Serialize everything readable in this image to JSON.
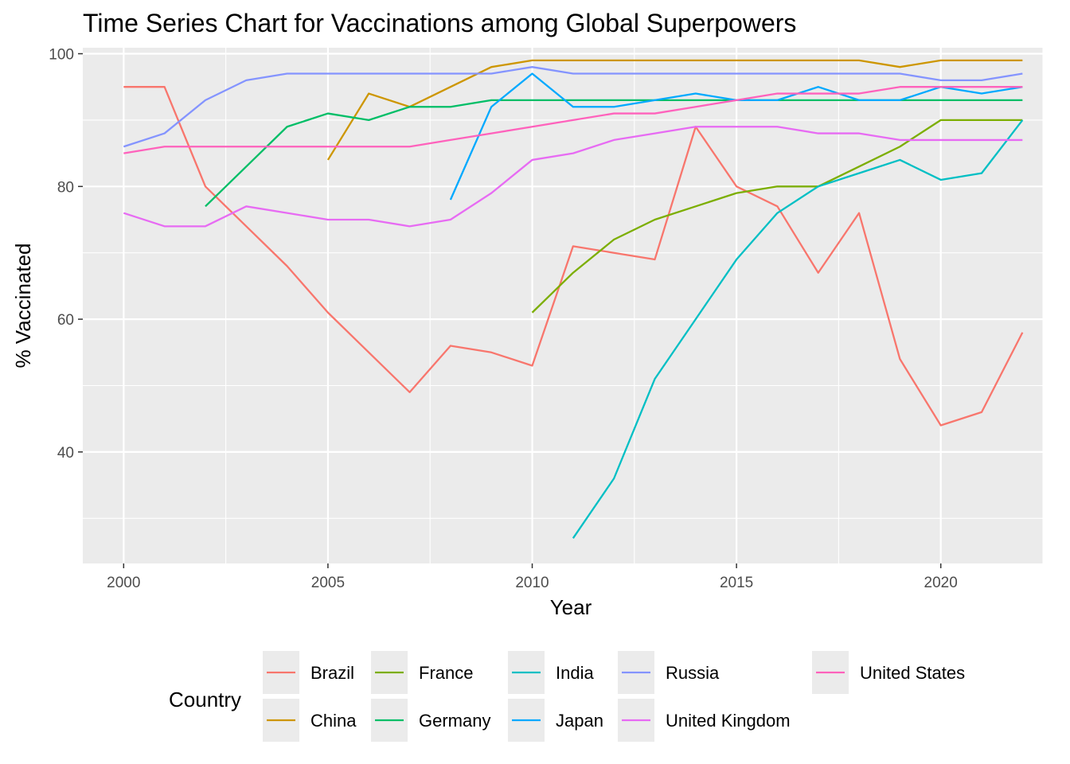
{
  "chart_data": {
    "type": "line",
    "title": "Time Series Chart for Vaccinations among Global Superpowers",
    "xlabel": "Year",
    "ylabel": "% Vaccinated",
    "xlim": [
      1999,
      2022.5
    ],
    "ylim": [
      23.2,
      100.9
    ],
    "x_ticks": [
      2000,
      2005,
      2010,
      2015,
      2020
    ],
    "x_tick_labels": [
      "2000",
      "2005",
      "2010",
      "2015",
      "2020"
    ],
    "y_ticks": [
      40,
      60,
      80,
      100
    ],
    "y_tick_labels": [
      "40",
      "60",
      "80",
      "100"
    ],
    "grid": true,
    "legend_title": "Country",
    "legend_position": "bottom",
    "series": [
      {
        "name": "Brazil",
        "color": "#F8766D",
        "points": [
          [
            2000,
            95
          ],
          [
            2001,
            95
          ],
          [
            2002,
            80
          ],
          [
            2003,
            74
          ],
          [
            2004,
            68
          ],
          [
            2005,
            61
          ],
          [
            2006,
            55
          ],
          [
            2007,
            49
          ],
          [
            2008,
            56
          ],
          [
            2009,
            55
          ],
          [
            2010,
            53
          ],
          [
            2011,
            71
          ],
          [
            2012,
            70
          ],
          [
            2013,
            69
          ],
          [
            2014,
            89
          ],
          [
            2015,
            80
          ],
          [
            2016,
            77
          ],
          [
            2017,
            67
          ],
          [
            2018,
            76
          ],
          [
            2019,
            54
          ],
          [
            2020,
            44
          ],
          [
            2021,
            46
          ],
          [
            2022,
            58
          ]
        ]
      },
      {
        "name": "China",
        "color": "#CD9600",
        "points": [
          [
            2005,
            84
          ],
          [
            2006,
            94
          ],
          [
            2007,
            92
          ],
          [
            2008,
            95
          ],
          [
            2009,
            98
          ],
          [
            2010,
            99
          ],
          [
            2011,
            99
          ],
          [
            2012,
            99
          ],
          [
            2013,
            99
          ],
          [
            2014,
            99
          ],
          [
            2015,
            99
          ],
          [
            2016,
            99
          ],
          [
            2017,
            99
          ],
          [
            2018,
            99
          ],
          [
            2019,
            98
          ],
          [
            2020,
            99
          ],
          [
            2021,
            99
          ],
          [
            2022,
            99
          ]
        ]
      },
      {
        "name": "France",
        "color": "#7CAE00",
        "points": [
          [
            2010,
            61
          ],
          [
            2011,
            67
          ],
          [
            2012,
            72
          ],
          [
            2013,
            75
          ],
          [
            2014,
            77
          ],
          [
            2015,
            79
          ],
          [
            2016,
            80
          ],
          [
            2017,
            80
          ],
          [
            2018,
            83
          ],
          [
            2019,
            86
          ],
          [
            2020,
            90
          ],
          [
            2021,
            90
          ],
          [
            2022,
            90
          ]
        ]
      },
      {
        "name": "Germany",
        "color": "#00BE67",
        "points": [
          [
            2002,
            77
          ],
          [
            2003,
            83
          ],
          [
            2004,
            89
          ],
          [
            2005,
            91
          ],
          [
            2006,
            90
          ],
          [
            2007,
            92
          ],
          [
            2008,
            92
          ],
          [
            2009,
            93
          ],
          [
            2010,
            93
          ],
          [
            2011,
            93
          ],
          [
            2012,
            93
          ],
          [
            2013,
            93
          ],
          [
            2014,
            93
          ],
          [
            2015,
            93
          ],
          [
            2016,
            93
          ],
          [
            2017,
            93
          ],
          [
            2018,
            93
          ],
          [
            2019,
            93
          ],
          [
            2020,
            93
          ],
          [
            2021,
            93
          ],
          [
            2022,
            93
          ]
        ]
      },
      {
        "name": "India",
        "color": "#00BFC4",
        "points": [
          [
            2011,
            27
          ],
          [
            2012,
            36
          ],
          [
            2013,
            51
          ],
          [
            2014,
            60
          ],
          [
            2015,
            69
          ],
          [
            2016,
            76
          ],
          [
            2017,
            80
          ],
          [
            2018,
            82
          ],
          [
            2019,
            84
          ],
          [
            2020,
            81
          ],
          [
            2021,
            82
          ],
          [
            2022,
            90
          ]
        ]
      },
      {
        "name": "Japan",
        "color": "#00A9FF",
        "points": [
          [
            2008,
            78
          ],
          [
            2009,
            92
          ],
          [
            2010,
            97
          ],
          [
            2011,
            92
          ],
          [
            2012,
            92
          ],
          [
            2013,
            93
          ],
          [
            2014,
            94
          ],
          [
            2015,
            93
          ],
          [
            2016,
            93
          ],
          [
            2017,
            95
          ],
          [
            2018,
            93
          ],
          [
            2019,
            93
          ],
          [
            2020,
            95
          ],
          [
            2021,
            94
          ],
          [
            2022,
            95
          ]
        ]
      },
      {
        "name": "Russia",
        "color": "#8494FF",
        "points": [
          [
            2000,
            86
          ],
          [
            2001,
            88
          ],
          [
            2002,
            93
          ],
          [
            2003,
            96
          ],
          [
            2004,
            97
          ],
          [
            2005,
            97
          ],
          [
            2006,
            97
          ],
          [
            2007,
            97
          ],
          [
            2008,
            97
          ],
          [
            2009,
            97
          ],
          [
            2010,
            98
          ],
          [
            2011,
            97
          ],
          [
            2012,
            97
          ],
          [
            2013,
            97
          ],
          [
            2014,
            97
          ],
          [
            2015,
            97
          ],
          [
            2016,
            97
          ],
          [
            2017,
            97
          ],
          [
            2018,
            97
          ],
          [
            2019,
            97
          ],
          [
            2020,
            96
          ],
          [
            2021,
            96
          ],
          [
            2022,
            97
          ]
        ]
      },
      {
        "name": "United Kingdom",
        "color": "#E76BF3",
        "points": [
          [
            2000,
            76
          ],
          [
            2001,
            74
          ],
          [
            2002,
            74
          ],
          [
            2003,
            77
          ],
          [
            2004,
            76
          ],
          [
            2005,
            75
          ],
          [
            2006,
            75
          ],
          [
            2007,
            74
          ],
          [
            2008,
            75
          ],
          [
            2009,
            79
          ],
          [
            2010,
            84
          ],
          [
            2011,
            85
          ],
          [
            2012,
            87
          ],
          [
            2013,
            88
          ],
          [
            2014,
            89
          ],
          [
            2015,
            89
          ],
          [
            2016,
            89
          ],
          [
            2017,
            88
          ],
          [
            2018,
            88
          ],
          [
            2019,
            87
          ],
          [
            2020,
            87
          ],
          [
            2021,
            87
          ],
          [
            2022,
            87
          ]
        ]
      },
      {
        "name": "United States",
        "color": "#FF62BC",
        "points": [
          [
            2000,
            85
          ],
          [
            2001,
            86
          ],
          [
            2002,
            86
          ],
          [
            2003,
            86
          ],
          [
            2004,
            86
          ],
          [
            2005,
            86
          ],
          [
            2006,
            86
          ],
          [
            2007,
            86
          ],
          [
            2008,
            87
          ],
          [
            2009,
            88
          ],
          [
            2010,
            89
          ],
          [
            2011,
            90
          ],
          [
            2012,
            91
          ],
          [
            2013,
            91
          ],
          [
            2014,
            92
          ],
          [
            2015,
            93
          ],
          [
            2016,
            94
          ],
          [
            2017,
            94
          ],
          [
            2018,
            94
          ],
          [
            2019,
            95
          ],
          [
            2020,
            95
          ],
          [
            2021,
            95
          ],
          [
            2022,
            95
          ]
        ]
      }
    ]
  },
  "colors": {
    "panel_background": "#EBEBEB",
    "grid_major": "#FFFFFF",
    "tick_text": "#4D4D4D"
  }
}
